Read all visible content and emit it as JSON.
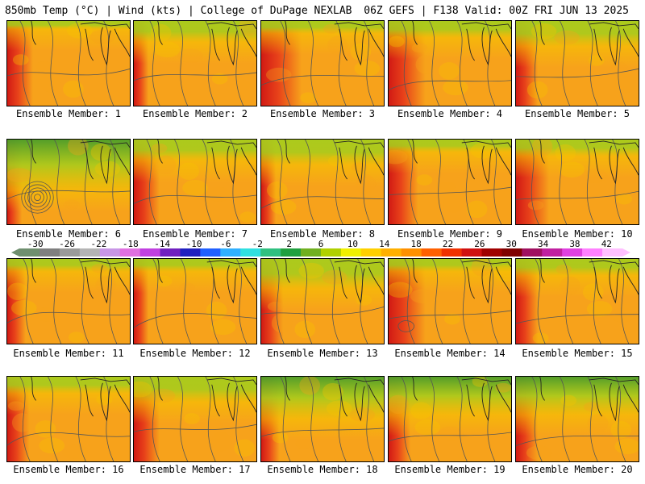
{
  "header": {
    "title_left": "850mb Temp (°C) | Wind (kts) | College of DuPage NEXLAB",
    "title_right": "06Z GEFS | F138 Valid: 00Z FRI JUN 13 2025"
  },
  "panels": [
    {
      "label": "Ensemble Member: 1"
    },
    {
      "label": "Ensemble Member: 2"
    },
    {
      "label": "Ensemble Member: 3"
    },
    {
      "label": "Ensemble Member: 4"
    },
    {
      "label": "Ensemble Member: 5"
    },
    {
      "label": "Ensemble Member: 6"
    },
    {
      "label": "Ensemble Member: 7"
    },
    {
      "label": "Ensemble Member: 8"
    },
    {
      "label": "Ensemble Member: 9"
    },
    {
      "label": "Ensemble Member: 10"
    },
    {
      "label": "Ensemble Member: 11"
    },
    {
      "label": "Ensemble Member: 12"
    },
    {
      "label": "Ensemble Member: 13"
    },
    {
      "label": "Ensemble Member: 14"
    },
    {
      "label": "Ensemble Member: 15"
    },
    {
      "label": "Ensemble Member: 16"
    },
    {
      "label": "Ensemble Member: 17"
    },
    {
      "label": "Ensemble Member: 18"
    },
    {
      "label": "Ensemble Member: 19"
    },
    {
      "label": "Ensemble Member: 20"
    }
  ],
  "colorbar": {
    "tick_labels": [
      "-30",
      "-26",
      "-22",
      "-18",
      "-14",
      "-10",
      "-6",
      "-2",
      "2",
      "6",
      "10",
      "14",
      "18",
      "22",
      "26",
      "30",
      "34",
      "38",
      "42"
    ],
    "colors": [
      "#6f8f6f",
      "#7f7f7f",
      "#9a9a9a",
      "#b4b4b4",
      "#c896e6",
      "#e070e0",
      "#c040e0",
      "#7020c0",
      "#2020c0",
      "#2060ff",
      "#30b0ff",
      "#30e0e0",
      "#30c080",
      "#20a040",
      "#70b020",
      "#b0d000",
      "#f0f000",
      "#ffd000",
      "#ffb000",
      "#ff9000",
      "#ff6000",
      "#f03000",
      "#d01010",
      "#a00000",
      "#800000",
      "#a01060",
      "#c020a0",
      "#e040e0",
      "#ff80ff",
      "#ffc0ff"
    ]
  },
  "colors": {
    "warm_base": "#f7a21b",
    "hot": "#e8421a",
    "very_hot": "#d11a14",
    "mild": "#f5c400",
    "cool": "#a8cc1c",
    "cold": "#4c9e2a",
    "contour": "#555555"
  }
}
